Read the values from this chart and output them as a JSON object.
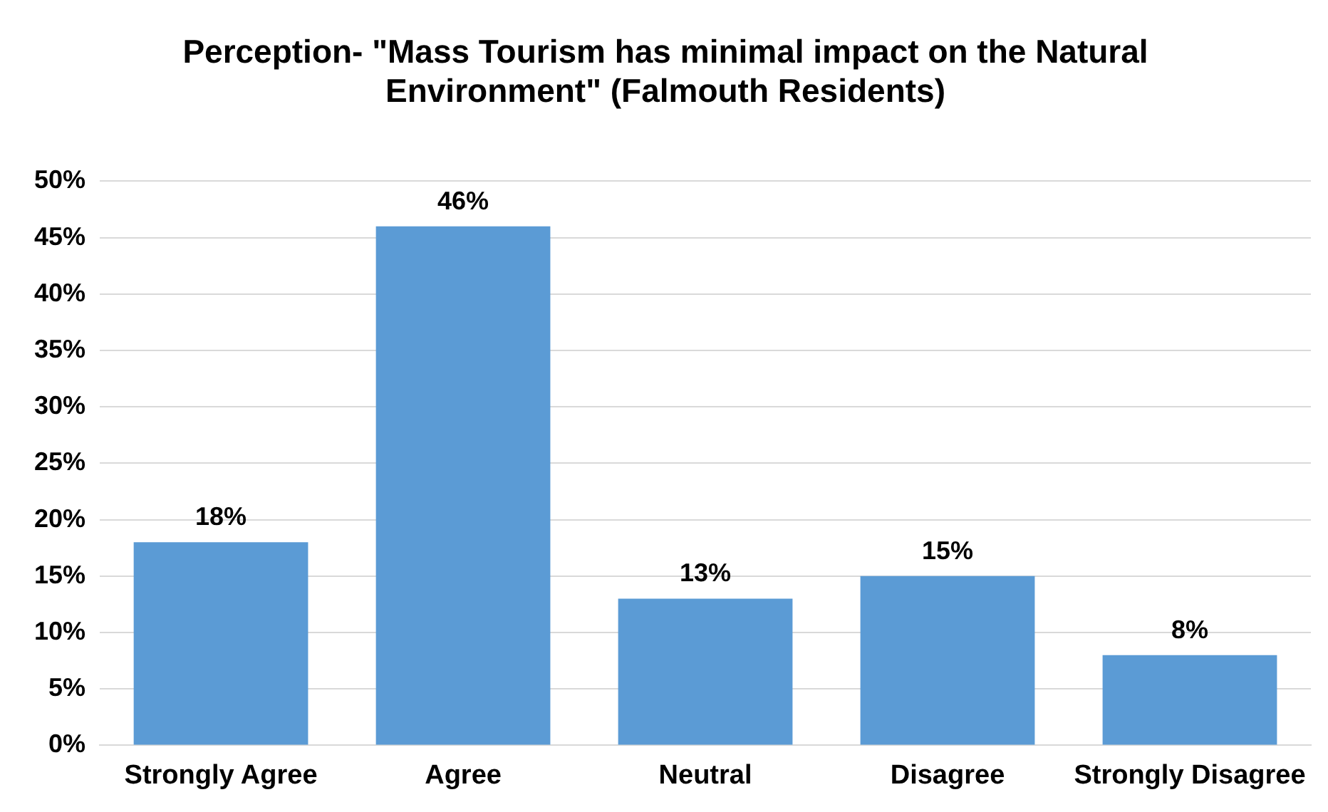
{
  "chart_data": {
    "type": "bar",
    "title": "Perception- \"Mass Tourism has minimal impact on the Natural Environment\" (Falmouth Residents)",
    "categories": [
      "Strongly Agree",
      "Agree",
      "Neutral",
      "Disagree",
      "Strongly Disagree"
    ],
    "values": [
      18,
      46,
      13,
      15,
      8
    ],
    "value_labels": [
      "18%",
      "46%",
      "13%",
      "15%",
      "8%"
    ],
    "color": "#5b9bd5",
    "ylim": [
      0,
      50
    ],
    "yticks": [
      {
        "value": 0,
        "label": "0%"
      },
      {
        "value": 5,
        "label": "5%"
      },
      {
        "value": 10,
        "label": "10%"
      },
      {
        "value": 15,
        "label": "15%"
      },
      {
        "value": 20,
        "label": "20%"
      },
      {
        "value": 25,
        "label": "25%"
      },
      {
        "value": 30,
        "label": "30%"
      },
      {
        "value": 35,
        "label": "35%"
      },
      {
        "value": 40,
        "label": "40%"
      },
      {
        "value": 45,
        "label": "45%"
      },
      {
        "value": 50,
        "label": "50%"
      }
    ],
    "grid": "y",
    "legend": false
  }
}
